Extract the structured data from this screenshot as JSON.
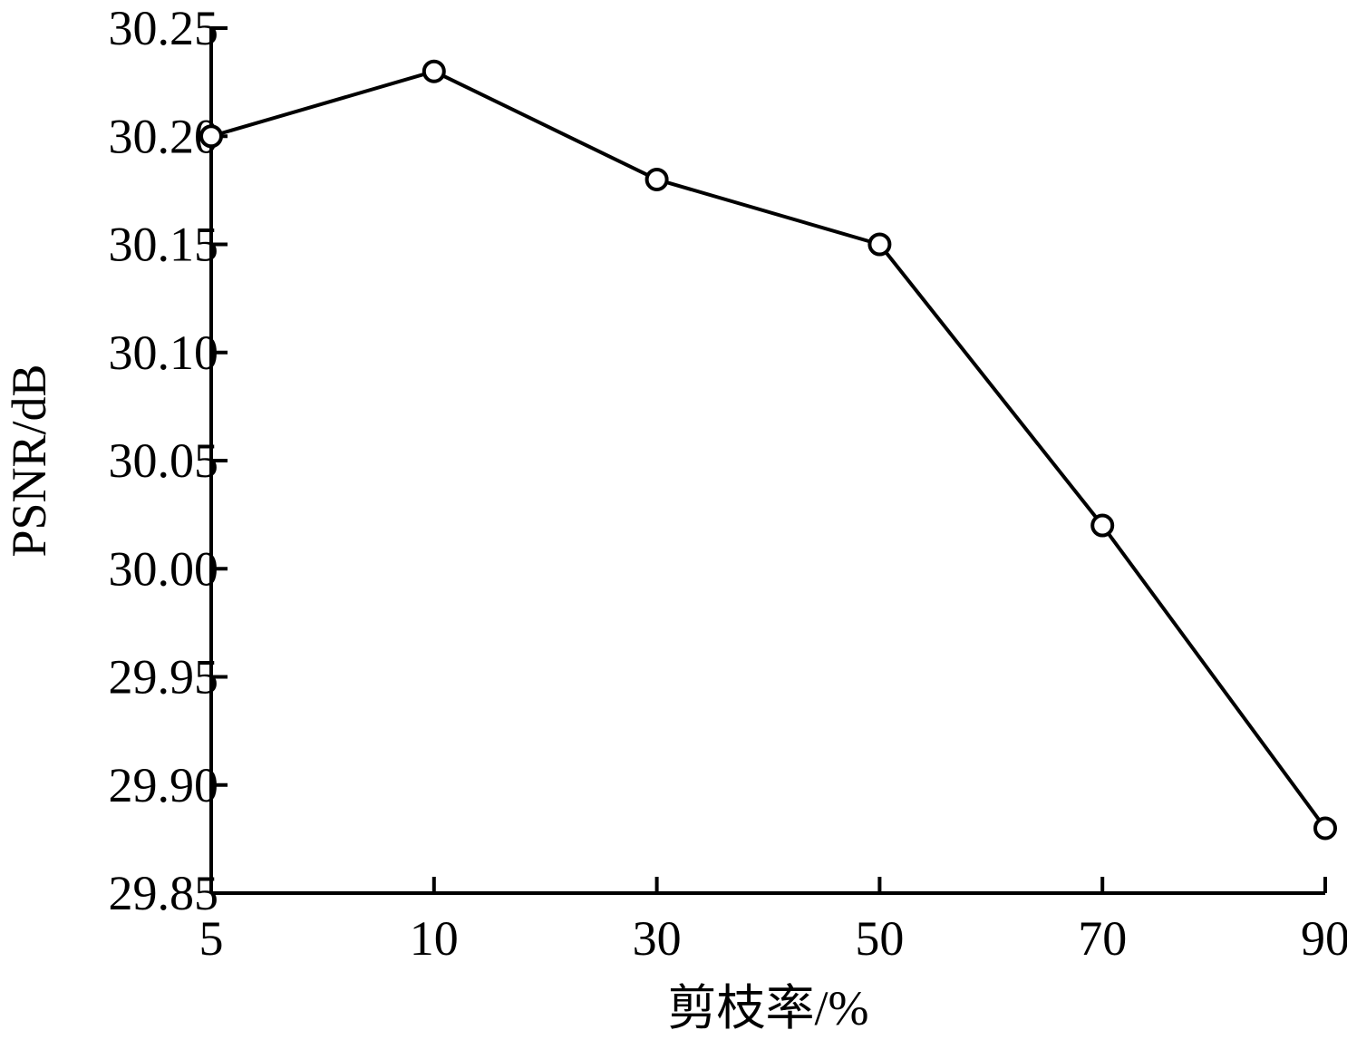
{
  "chart_data": {
    "type": "line",
    "title": "",
    "xlabel": "剪枝率/%",
    "ylabel": "PSNR/dB",
    "x_scale": "categorical",
    "categories": [
      "5",
      "10",
      "30",
      "50",
      "70",
      "90"
    ],
    "y_ticks": [
      "29.85",
      "29.90",
      "29.95",
      "30.00",
      "30.05",
      "30.10",
      "30.15",
      "30.20",
      "30.25"
    ],
    "ylim": [
      29.85,
      30.25
    ],
    "grid": false,
    "legend": "none",
    "series": [
      {
        "values": [
          30.2,
          30.23,
          30.18,
          30.15,
          30.02,
          29.88
        ],
        "marker": "open-circle",
        "color": "#000000"
      }
    ]
  }
}
